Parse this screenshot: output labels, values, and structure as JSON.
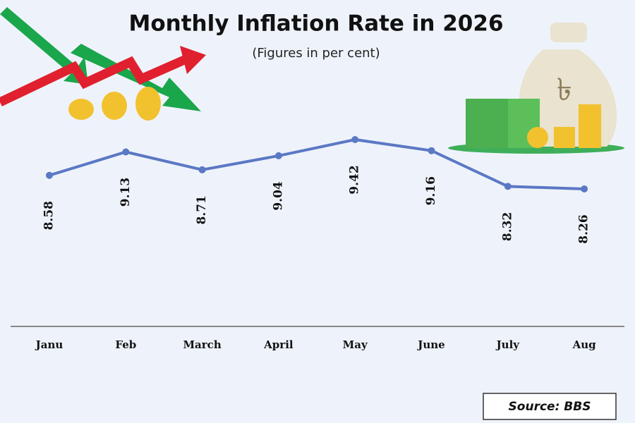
{
  "chart_data": {
    "type": "line",
    "title": "Monthly Inflation Rate in 2026",
    "subtitle": "(Figures in per cent)",
    "categories": [
      "Janu",
      "Feb",
      "March",
      "April",
      "May",
      "June",
      "July",
      "Aug"
    ],
    "values": [
      8.58,
      9.13,
      8.71,
      9.04,
      9.42,
      9.16,
      8.32,
      8.26
    ],
    "color": "#5b78c4",
    "source": "Source: BBS"
  }
}
